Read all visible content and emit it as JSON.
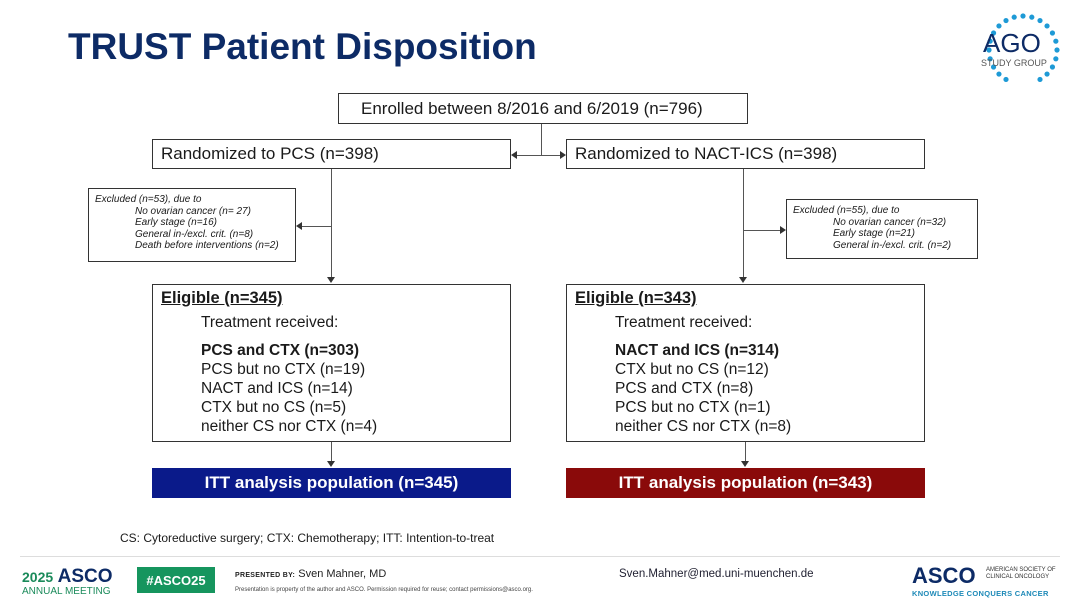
{
  "title": "TRUST Patient Disposition",
  "logo": {
    "line1": "AGO",
    "line2": "STUDY GROUP",
    "color": "#1e9ad6"
  },
  "enrolled": "Enrolled between 8/2016 and 6/2019 (n=796)",
  "left": {
    "randomized": "Randomized to PCS (n=398)",
    "excluded_head": "Excluded (n=53), due to",
    "excluded_items": [
      "No ovarian cancer (n= 27)",
      "Early stage (n=16)",
      "General in-/excl. crit. (n=8)",
      "Death before interventions (n=2)"
    ],
    "eligible": "Eligible (n=345)",
    "treatment_label": "Treatment received:",
    "treatments": [
      "PCS and CTX (n=303)",
      "PCS but no CTX (n=19)",
      "NACT and ICS (n=14)",
      "CTX but no CS (n=5)",
      "neither CS nor CTX (n=4)"
    ],
    "itt": "ITT analysis population (n=345)",
    "itt_color": "#0a1a8a"
  },
  "right": {
    "randomized": "Randomized to NACT-ICS (n=398)",
    "excluded_head": "Excluded (n=55), due to",
    "excluded_items": [
      "No ovarian cancer (n=32)",
      "Early stage (n=21)",
      "General in-/excl. crit. (n=2)"
    ],
    "eligible": "Eligible (n=343)",
    "treatment_label": "Treatment received:",
    "treatments": [
      "NACT and ICS (n=314)",
      "CTX but no CS (n=12)",
      "PCS and CTX (n=8)",
      "PCS but no CTX (n=1)",
      "neither CS nor CTX (n=8)"
    ],
    "itt": "ITT analysis population (n=343)",
    "itt_color": "#8a0a0a"
  },
  "footnote": "CS: Cytoreductive surgery; CTX: Chemotherapy; ITT: Intention-to-treat",
  "footer": {
    "meeting_year": "2025",
    "meeting_brand": "ASCO",
    "meeting_sub": "ANNUAL MEETING",
    "hashtag": "#ASCO25",
    "presented_by_label": "PRESENTED BY:",
    "presenter": "Sven Mahner, MD",
    "disclaimer": "Presentation is property of the author and ASCO. Permission required for reuse; contact permissions@asco.org.",
    "email": "Sven.Mahner@med.uni-muenchen.de",
    "asco_brand": "ASCO",
    "asco_sub1": "AMERICAN SOCIETY OF",
    "asco_sub2": "CLINICAL ONCOLOGY",
    "asco_tagline": "KNOWLEDGE CONQUERS CANCER"
  }
}
